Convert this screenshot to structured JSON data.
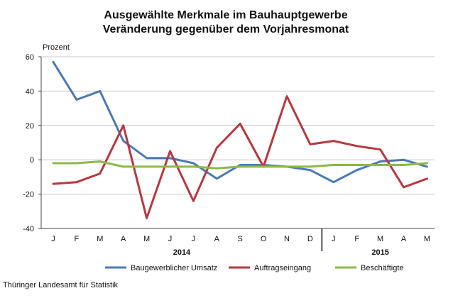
{
  "chart_data": {
    "type": "line",
    "title": "Ausgewählte Merkmale im Bauhauptgewerbe",
    "subtitle": "Veränderung gegenüber dem Vorjahresmonat",
    "ylabel": "Prozent",
    "ylim": [
      -40,
      60
    ],
    "yticks": [
      -40,
      -20,
      0,
      20,
      40,
      60
    ],
    "grid": true,
    "legend": "bottom",
    "x": [
      "J",
      "F",
      "M",
      "A",
      "M",
      "J",
      "J",
      "A",
      "S",
      "O",
      "N",
      "D",
      "J",
      "F",
      "M",
      "A",
      "M"
    ],
    "year_groups": [
      {
        "label": "2014",
        "start": 0,
        "end": 11
      },
      {
        "label": "2015",
        "start": 12,
        "end": 16
      }
    ],
    "series": [
      {
        "name": "Baugewerblicher Umsatz",
        "color": "#4a79b4",
        "values": [
          57,
          35,
          40,
          11,
          1,
          1,
          -2,
          -11,
          -3,
          -3,
          -4,
          -6,
          -13,
          -6,
          -1,
          0,
          -4
        ]
      },
      {
        "name": "Auftragseingang",
        "color": "#b9373f",
        "values": [
          -14,
          -13,
          -8,
          20,
          -34,
          5,
          -24,
          7,
          21,
          -4,
          37,
          9,
          11,
          8,
          6,
          -16,
          -11
        ]
      },
      {
        "name": "Beschäftigte",
        "color": "#8cb84a",
        "values": [
          -2,
          -2,
          -1,
          -4,
          -4,
          -4,
          -4,
          -5,
          -4,
          -4,
          -4,
          -4,
          -3,
          -3,
          -3,
          -3,
          -2
        ]
      }
    ]
  },
  "source": "Thüringer Landesamt für Statistik"
}
